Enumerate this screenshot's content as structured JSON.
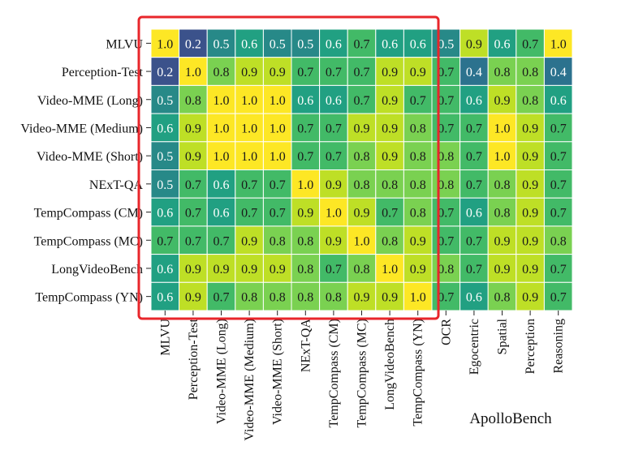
{
  "chart_data": {
    "type": "heatmap",
    "rows": [
      "MLVU",
      "Perception-Test",
      "Video-MME (Long)",
      "Video-MME (Medium)",
      "Video-MME (Short)",
      "NExT-QA",
      "TempCompass (CM)",
      "TempCompass (MC)",
      "LongVideoBench",
      "TempCompass (YN)"
    ],
    "columns": [
      "MLVU",
      "Perception-Test",
      "Video-MME (Long)",
      "Video-MME (Medium)",
      "Video-MME (Short)",
      "NExT-QA",
      "TempCompass (CM)",
      "TempCompass (MC)",
      "LongVideoBench",
      "TempCompass (YN)",
      "OCR",
      "Egocentric",
      "Spatial",
      "Perception",
      "Reasoning"
    ],
    "values": [
      [
        1.0,
        0.2,
        0.5,
        0.6,
        0.5,
        0.5,
        0.6,
        0.7,
        0.6,
        0.6,
        0.5,
        0.9,
        0.6,
        0.7,
        1.0
      ],
      [
        0.2,
        1.0,
        0.8,
        0.9,
        0.9,
        0.7,
        0.7,
        0.7,
        0.9,
        0.9,
        0.7,
        0.4,
        0.8,
        0.8,
        0.4
      ],
      [
        0.5,
        0.8,
        1.0,
        1.0,
        1.0,
        0.6,
        0.6,
        0.7,
        0.9,
        0.7,
        0.7,
        0.6,
        0.9,
        0.8,
        0.6
      ],
      [
        0.6,
        0.9,
        1.0,
        1.0,
        1.0,
        0.7,
        0.7,
        0.9,
        0.9,
        0.8,
        0.7,
        0.7,
        1.0,
        0.9,
        0.7
      ],
      [
        0.5,
        0.9,
        1.0,
        1.0,
        1.0,
        0.7,
        0.7,
        0.8,
        0.9,
        0.8,
        0.8,
        0.7,
        1.0,
        0.9,
        0.7
      ],
      [
        0.5,
        0.7,
        0.6,
        0.7,
        0.7,
        1.0,
        0.9,
        0.8,
        0.8,
        0.8,
        0.8,
        0.7,
        0.8,
        0.9,
        0.7
      ],
      [
        0.6,
        0.7,
        0.6,
        0.7,
        0.7,
        0.9,
        1.0,
        0.9,
        0.7,
        0.8,
        0.7,
        0.6,
        0.8,
        0.9,
        0.7
      ],
      [
        0.7,
        0.7,
        0.7,
        0.9,
        0.8,
        0.8,
        0.9,
        1.0,
        0.8,
        0.9,
        0.7,
        0.7,
        0.9,
        0.9,
        0.8
      ],
      [
        0.6,
        0.9,
        0.9,
        0.9,
        0.9,
        0.8,
        0.7,
        0.8,
        1.0,
        0.9,
        0.8,
        0.7,
        0.9,
        0.9,
        0.7
      ],
      [
        0.6,
        0.9,
        0.7,
        0.8,
        0.8,
        0.8,
        0.8,
        0.9,
        0.9,
        1.0,
        0.7,
        0.6,
        0.8,
        0.9,
        0.7
      ]
    ],
    "group_label": "ApolloBench",
    "highlight_color": "#e8262b",
    "colormap": "viridis"
  }
}
